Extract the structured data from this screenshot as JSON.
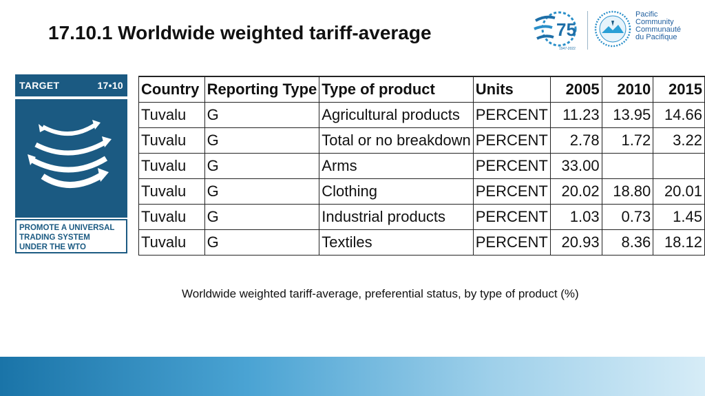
{
  "title": "17.10.1  Worldwide weighted tariff-average",
  "logo_75": {
    "text": "75",
    "sub": "1947-2022"
  },
  "spc": {
    "line1": "Pacific",
    "line2": "Community",
    "line3": "Communauté",
    "line4": "du Pacifique"
  },
  "target": {
    "label": "TARGET",
    "number": "17•10",
    "foot_line1": "PROMOTE A UNIVERSAL",
    "foot_line2": "TRADING SYSTEM",
    "foot_line3": "UNDER THE WTO"
  },
  "table": {
    "headers": [
      "Country",
      "Reporting Type",
      "Type of product",
      "Units",
      "2005",
      "2010",
      "2015"
    ],
    "rows": [
      [
        "Tuvalu",
        "G",
        "Agricultural products",
        "PERCENT",
        "11.23",
        "13.95",
        "14.66"
      ],
      [
        "Tuvalu",
        "G",
        "Total or no breakdown",
        "PERCENT",
        "2.78",
        "1.72",
        "3.22"
      ],
      [
        "Tuvalu",
        "G",
        "Arms",
        "PERCENT",
        "33.00",
        "",
        ""
      ],
      [
        "Tuvalu",
        "G",
        "Clothing",
        "PERCENT",
        "20.02",
        "18.80",
        "20.01"
      ],
      [
        "Tuvalu",
        "G",
        "Industrial products",
        "PERCENT",
        "1.03",
        "0.73",
        "1.45"
      ],
      [
        "Tuvalu",
        "G",
        "Textiles",
        "PERCENT",
        "20.93",
        "8.36",
        "18.12"
      ]
    ]
  },
  "caption": "Worldwide weighted tariff-average, preferential status, by type of product (%)",
  "colors": {
    "target_blue": "#1b5a82",
    "spc_blue": "#1f5e9e"
  }
}
